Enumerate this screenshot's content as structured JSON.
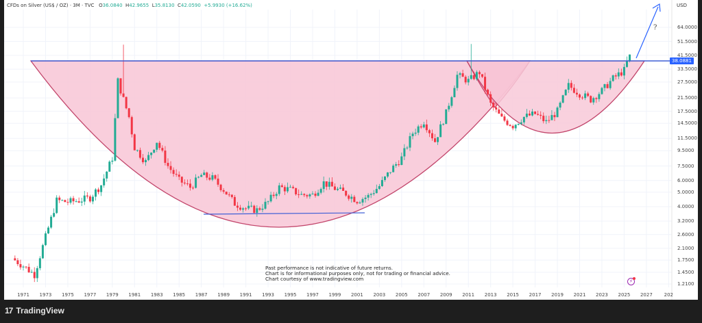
{
  "header": {
    "symbol": "CFDs on Silver (US$ / OZ) · 3M · TVC",
    "open_label": "O",
    "open": "36.0840",
    "high_label": "H",
    "high": "42.9655",
    "low_label": "L",
    "low": "35.8130",
    "close_label": "C",
    "close": "42.0590",
    "change": "+5.9930 (+16.62%)"
  },
  "price_axis": {
    "currency": "USD",
    "current_price": "38.0881",
    "labels": [
      "64.0000",
      "51.5000",
      "41.5000",
      "33.5000",
      "27.5000",
      "21.5000",
      "17.5000",
      "14.5000",
      "11.5000",
      "9.5000",
      "7.5000",
      "6.0000",
      "5.0000",
      "4.0000",
      "3.2000",
      "2.6000",
      "2.1000",
      "1.7500",
      "1.4500",
      "1.2100"
    ]
  },
  "time_axis": {
    "labels": [
      "1971",
      "1973",
      "1975",
      "1977",
      "1979",
      "1981",
      "1983",
      "1985",
      "1987",
      "1989",
      "1991",
      "1993",
      "1995",
      "1997",
      "1999",
      "2001",
      "2003",
      "2005",
      "2007",
      "2009",
      "2011",
      "2013",
      "2015",
      "2017",
      "2019",
      "2021",
      "2023",
      "2025",
      "2027",
      "202"
    ]
  },
  "annotation": {
    "question_mark": "?"
  },
  "disclaimer": {
    "line1": "Past performance is not indicative of future returns.",
    "line2": "Chart is for informational purposes only, not for trading or financial advice.",
    "line3": "Chart courtesy of www.tradingview.com"
  },
  "footer": {
    "logo_mark": "17",
    "brand": "TradingView"
  },
  "colors": {
    "up": "#22ab94",
    "down": "#f23645",
    "resistance": "#3f5fd6",
    "cup_fill": "#f8c6d6",
    "cup_stroke": "#c2456b",
    "arrow": "#2962ff"
  },
  "chart_data": {
    "type": "candlestick",
    "title": "CFDs on Silver (US$ / OZ) · 3M · TVC",
    "scale": "log",
    "xlabel": "",
    "ylabel": "USD",
    "ylim": [
      1.21,
      80
    ],
    "xlim": [
      1970,
      2029
    ],
    "resistance_level": 38.0881,
    "ohlc_last": {
      "open": 36.084,
      "high": 42.9655,
      "low": 35.813,
      "close": 42.059,
      "change": 5.993,
      "change_pct": 16.62
    },
    "patterns": [
      "Large cup 1980–2011 (rim ~38)",
      "Handle/cup 2011–2025 (rim ~38)",
      "Inner support line ~3.6 (1987–2001)",
      "Breakout arrow with '?' above 64"
    ],
    "approx_quarterly_closes": {
      "x": [
        1970,
        1971,
        1972,
        1973,
        1974,
        1975,
        1976,
        1977,
        1978,
        1979,
        1979.5,
        1980,
        1980.5,
        1981,
        1982,
        1983,
        1984,
        1985,
        1986,
        1987,
        1988,
        1989,
        1990,
        1991,
        1992,
        1993,
        1994,
        1995,
        1996,
        1997,
        1998,
        1999,
        2000,
        2001,
        2002,
        2003,
        2004,
        2005,
        2006,
        2007,
        2008,
        2009,
        2010,
        2011,
        2012,
        2013,
        2014,
        2015,
        2016,
        2017,
        2018,
        2019,
        2020,
        2021,
        2022,
        2023,
        2024,
        2025,
        2025.5
      ],
      "values": [
        1.8,
        1.6,
        1.4,
        2.5,
        4.4,
        4.3,
        4.4,
        4.6,
        5.6,
        8.5,
        28,
        21,
        16,
        10,
        8,
        11,
        7.5,
        6.0,
        5.4,
        6.5,
        6.2,
        5.2,
        4.2,
        3.9,
        3.8,
        4.3,
        5.4,
        5.2,
        4.8,
        4.8,
        5.8,
        5.3,
        4.9,
        4.4,
        4.7,
        5.5,
        7.0,
        8.5,
        12.5,
        15,
        11,
        17,
        30.5,
        28,
        32,
        19.5,
        15.6,
        14,
        16,
        16.8,
        14.8,
        17.5,
        26,
        23,
        21,
        24,
        29,
        33,
        42
      ]
    }
  }
}
